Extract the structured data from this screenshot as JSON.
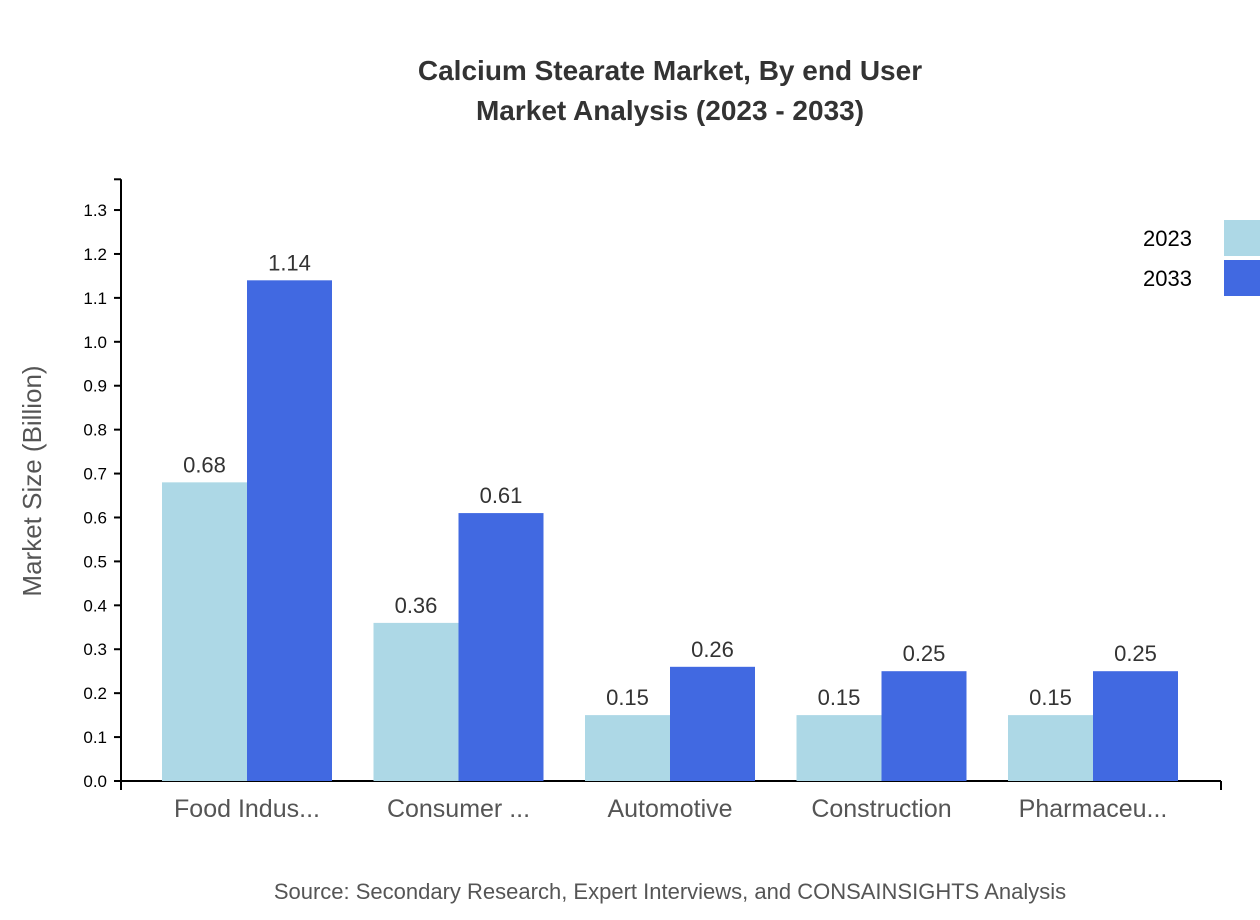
{
  "chart_data": {
    "type": "bar",
    "title": "Calcium Stearate Market, By end User",
    "subtitle": "Market Analysis (2023 - 2033)",
    "xlabel": "",
    "ylabel": "Market Size (Billion)",
    "ylim": [
      0,
      1.37
    ],
    "yticks": [
      "0.0",
      "0.1",
      "0.2",
      "0.3",
      "0.4",
      "0.5",
      "0.6",
      "0.7",
      "0.8",
      "0.9",
      "1.0",
      "1.1",
      "1.2",
      "1.3"
    ],
    "grid": false,
    "legend_placement": "top-right",
    "categories": [
      "Food Indus...",
      "Consumer ...",
      "Automotive",
      "Construction",
      "Pharmaceu..."
    ],
    "series": [
      {
        "name": "2023",
        "color": "#ADD8E6",
        "values": [
          0.68,
          0.36,
          0.15,
          0.15,
          0.15
        ]
      },
      {
        "name": "2033",
        "color": "#4169E1",
        "values": [
          1.14,
          0.61,
          0.26,
          0.25,
          0.25
        ]
      }
    ],
    "source": "Source: Secondary Research, Expert Interviews, and CONSAINSIGHTS Analysis"
  }
}
